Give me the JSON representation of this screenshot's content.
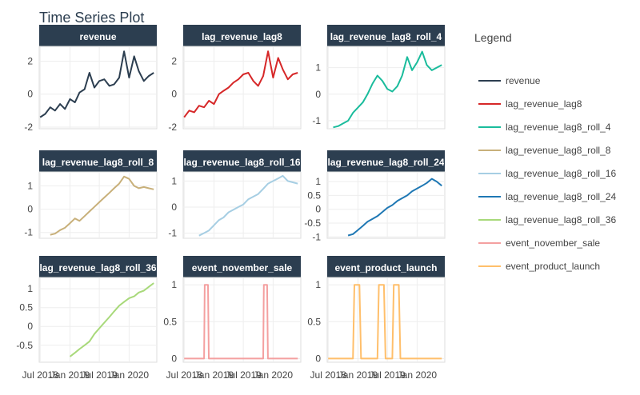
{
  "title": "Time Series Plot",
  "legend_title": "Legend",
  "x_ticks": [
    "Jul 2018",
    "Jan 2019",
    "Jul 2019",
    "Jan 2020"
  ],
  "chart_data": {
    "type": "line",
    "title": "Time Series Plot",
    "layout": "3x3 facets, free y scales, shared time x axis",
    "x_range": [
      "2018-07",
      "2020-06"
    ],
    "grid": true,
    "legend": "right",
    "panels": [
      {
        "name": "revenue",
        "color": "#2c3e50",
        "y_ticks": [
          2,
          0,
          -2
        ],
        "ylim": [
          -2.1,
          2.9
        ],
        "x": [
          "2018-07",
          "2018-08",
          "2018-09",
          "2018-10",
          "2018-11",
          "2018-12",
          "2019-01",
          "2019-02",
          "2019-03",
          "2019-04",
          "2019-05",
          "2019-06",
          "2019-07",
          "2019-08",
          "2019-09",
          "2019-10",
          "2019-11",
          "2019-12",
          "2020-01",
          "2020-02",
          "2020-03",
          "2020-04",
          "2020-05",
          "2020-06"
        ],
        "values": [
          -1.4,
          -1.2,
          -0.8,
          -1.0,
          -0.6,
          -0.9,
          -0.3,
          -0.5,
          0.1,
          0.3,
          1.3,
          0.4,
          0.8,
          0.9,
          0.5,
          0.6,
          1.0,
          2.6,
          1.0,
          2.3,
          1.4,
          0.8,
          1.1,
          1.3
        ]
      },
      {
        "name": "lag_revenue_lag8",
        "color": "#d62728",
        "y_ticks": [
          2,
          0,
          -2
        ],
        "ylim": [
          -2.1,
          2.9
        ],
        "x": [
          "2018-07",
          "2018-08",
          "2018-09",
          "2018-10",
          "2018-11",
          "2018-12",
          "2019-01",
          "2019-02",
          "2019-03",
          "2019-04",
          "2019-05",
          "2019-06",
          "2019-07",
          "2019-08",
          "2019-09",
          "2019-10",
          "2019-11",
          "2019-12",
          "2020-01",
          "2020-02",
          "2020-03",
          "2020-04",
          "2020-05",
          "2020-06"
        ],
        "values": [
          -1.4,
          -1.0,
          -1.1,
          -0.7,
          -0.8,
          -0.4,
          -0.6,
          0.0,
          0.2,
          0.4,
          0.7,
          0.9,
          1.2,
          1.3,
          0.8,
          0.5,
          1.1,
          2.6,
          1.0,
          2.2,
          1.5,
          0.9,
          1.2,
          1.3
        ]
      },
      {
        "name": "lag_revenue_lag8_roll_4",
        "color": "#1abc9c",
        "y_ticks": [
          1,
          0,
          -1
        ],
        "ylim": [
          -1.3,
          1.8
        ],
        "x": [
          "2018-08",
          "2018-09",
          "2018-10",
          "2018-11",
          "2018-12",
          "2019-01",
          "2019-02",
          "2019-03",
          "2019-04",
          "2019-05",
          "2019-06",
          "2019-07",
          "2019-08",
          "2019-09",
          "2019-10",
          "2019-11",
          "2019-12",
          "2020-01",
          "2020-02",
          "2020-03",
          "2020-04",
          "2020-05",
          "2020-06"
        ],
        "values": [
          -1.25,
          -1.2,
          -1.1,
          -1.0,
          -0.7,
          -0.5,
          -0.3,
          0.0,
          0.4,
          0.7,
          0.5,
          0.2,
          0.1,
          0.3,
          0.7,
          1.4,
          0.9,
          1.2,
          1.6,
          1.1,
          0.9,
          1.0,
          1.1
        ]
      },
      {
        "name": "lag_revenue_lag8_roll_8",
        "color": "#c8b07a",
        "y_ticks": [
          1,
          0,
          -1
        ],
        "ylim": [
          -1.25,
          1.6
        ],
        "x": [
          "2018-09",
          "2018-10",
          "2018-11",
          "2018-12",
          "2019-01",
          "2019-02",
          "2019-03",
          "2019-04",
          "2019-05",
          "2019-06",
          "2019-07",
          "2019-08",
          "2019-09",
          "2019-10",
          "2019-11",
          "2019-12",
          "2020-01",
          "2020-02",
          "2020-03",
          "2020-04",
          "2020-05",
          "2020-06"
        ],
        "values": [
          -1.1,
          -1.05,
          -0.9,
          -0.8,
          -0.6,
          -0.4,
          -0.5,
          -0.3,
          -0.1,
          0.1,
          0.3,
          0.5,
          0.7,
          0.9,
          1.1,
          1.4,
          1.3,
          1.0,
          0.9,
          0.95,
          0.9,
          0.85
        ]
      },
      {
        "name": "lag_revenue_lag8_roll_16",
        "color": "#a6cee3",
        "y_ticks": [
          1,
          0,
          -1
        ],
        "ylim": [
          -1.2,
          1.35
        ],
        "x": [
          "2018-10",
          "2018-11",
          "2018-12",
          "2019-01",
          "2019-02",
          "2019-03",
          "2019-04",
          "2019-05",
          "2019-06",
          "2019-07",
          "2019-08",
          "2019-09",
          "2019-10",
          "2019-11",
          "2019-12",
          "2020-01",
          "2020-02",
          "2020-03",
          "2020-04",
          "2020-05",
          "2020-06"
        ],
        "values": [
          -1.1,
          -1.0,
          -0.9,
          -0.7,
          -0.5,
          -0.4,
          -0.2,
          -0.1,
          0.0,
          0.1,
          0.3,
          0.4,
          0.5,
          0.7,
          0.9,
          1.0,
          1.1,
          1.2,
          1.0,
          0.95,
          0.9
        ]
      },
      {
        "name": "lag_revenue_lag8_roll_24",
        "color": "#1f78b4",
        "y_ticks": [
          1,
          0.5,
          0,
          -0.5,
          -1
        ],
        "ylim": [
          -1.05,
          1.35
        ],
        "x": [
          "2018-11",
          "2018-12",
          "2019-01",
          "2019-02",
          "2019-03",
          "2019-04",
          "2019-05",
          "2019-06",
          "2019-07",
          "2019-08",
          "2019-09",
          "2019-10",
          "2019-11",
          "2019-12",
          "2020-01",
          "2020-02",
          "2020-03",
          "2020-04",
          "2020-05",
          "2020-06"
        ],
        "values": [
          -0.95,
          -0.9,
          -0.75,
          -0.6,
          -0.45,
          -0.35,
          -0.25,
          -0.1,
          0.05,
          0.15,
          0.3,
          0.4,
          0.5,
          0.65,
          0.75,
          0.85,
          0.95,
          1.1,
          1.0,
          0.85
        ]
      },
      {
        "name": "lag_revenue_lag8_roll_36",
        "color": "#a8d97a",
        "y_ticks": [
          1,
          0.5,
          0,
          -0.5
        ],
        "ylim": [
          -0.95,
          1.3
        ],
        "x": [
          "2019-01",
          "2019-02",
          "2019-03",
          "2019-04",
          "2019-05",
          "2019-06",
          "2019-07",
          "2019-08",
          "2019-09",
          "2019-10",
          "2019-11",
          "2019-12",
          "2020-01",
          "2020-02",
          "2020-03",
          "2020-04",
          "2020-05",
          "2020-06"
        ],
        "values": [
          -0.8,
          -0.7,
          -0.6,
          -0.5,
          -0.4,
          -0.2,
          -0.05,
          0.1,
          0.25,
          0.4,
          0.55,
          0.65,
          0.75,
          0.8,
          0.9,
          0.95,
          1.05,
          1.15
        ]
      },
      {
        "name": "event_november_sale",
        "color": "#f4a0a0",
        "y_ticks": [
          1,
          0.5,
          0
        ],
        "ylim": [
          -0.05,
          1.1
        ],
        "x": [
          "2018-07",
          "2018-11-01",
          "2018-11-05",
          "2018-11-25",
          "2018-11-30",
          "2019-11-01",
          "2019-11-05",
          "2019-11-25",
          "2019-11-30",
          "2020-06"
        ],
        "values": [
          0,
          0,
          1,
          1,
          0,
          0,
          1,
          1,
          0,
          0
        ]
      },
      {
        "name": "event_product_launch",
        "color": "#ffbf6b",
        "y_ticks": [
          1,
          0.5,
          0
        ],
        "ylim": [
          -0.05,
          1.1
        ],
        "x": [
          "2018-07",
          "2018-12-01",
          "2018-12-10",
          "2019-01-10",
          "2019-01-20",
          "2019-05-01",
          "2019-05-10",
          "2019-06-10",
          "2019-06-20",
          "2019-08-01",
          "2019-08-10",
          "2019-09-10",
          "2019-09-20",
          "2020-06"
        ],
        "values": [
          0,
          0,
          1,
          1,
          0,
          0,
          1,
          1,
          0,
          0,
          1,
          1,
          0,
          0
        ]
      }
    ]
  }
}
